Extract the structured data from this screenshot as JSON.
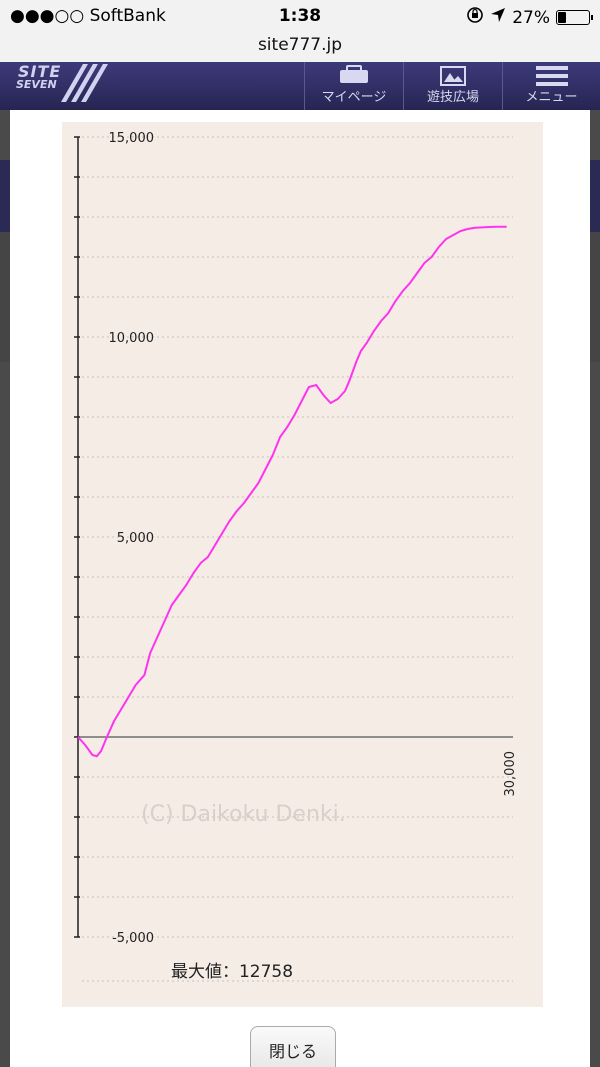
{
  "status_bar": {
    "carrier": "●●●○○ SoftBank",
    "time": "1:38",
    "battery": "27%",
    "battery_level": 0.27
  },
  "browser": {
    "url": "site777.jp"
  },
  "site_header": {
    "logo": {
      "line1": "SITE",
      "line2": "SEVEN"
    },
    "nav": [
      {
        "label": "マイページ",
        "icon": "mypage-icon"
      },
      {
        "label": "遊技広場",
        "icon": "plaza-icon"
      },
      {
        "label": "メニュー",
        "icon": "menu-icon"
      }
    ],
    "colors": {
      "header": "#2e2c63",
      "accent": "#5b3c9a"
    }
  },
  "chart_data": {
    "type": "line",
    "ylim": [
      -5000,
      15000
    ],
    "xlim": [
      0,
      30000
    ],
    "yticks": [
      {
        "value": 15000,
        "label": "15,000"
      },
      {
        "value": 10000,
        "label": "10,000"
      },
      {
        "value": 5000,
        "label": "5,000"
      },
      {
        "value": -5000,
        "label": "-5,000"
      }
    ],
    "xticks": [
      {
        "value": 30000,
        "label": "30,000"
      }
    ],
    "minor_step": 1000,
    "grid": true,
    "line_color": "#ff33ee",
    "watermark": "(C) Daikoku Denki.",
    "series": [
      {
        "x": [
          0,
          500,
          1000,
          1300,
          1600,
          2000,
          2500,
          3000,
          3500,
          4000,
          4600,
          5000,
          5500,
          6000,
          6500,
          7000,
          7500,
          8000,
          8500,
          9000,
          9500,
          10000,
          10500,
          11000,
          11500,
          12000,
          12500,
          13000,
          13500,
          14000,
          14500,
          15000,
          15500,
          16000,
          16500,
          17000,
          17500,
          18000,
          18500,
          18800,
          19300,
          19600,
          20000,
          20500,
          21000,
          21500,
          22000,
          22500,
          23000,
          23500,
          24000,
          24500,
          25000,
          25500,
          26000,
          26500,
          27000,
          27500,
          28000,
          28500,
          29000,
          29700
        ],
        "y": [
          0,
          -200,
          -450,
          -480,
          -350,
          0,
          400,
          700,
          1000,
          1300,
          1550,
          2100,
          2500,
          2900,
          3300,
          3550,
          3800,
          4100,
          4350,
          4500,
          4800,
          5100,
          5400,
          5650,
          5850,
          6100,
          6350,
          6700,
          7050,
          7500,
          7750,
          8050,
          8400,
          8750,
          8800,
          8550,
          8350,
          8450,
          8650,
          8900,
          9400,
          9650,
          9850,
          10150,
          10400,
          10600,
          10900,
          11150,
          11350,
          11600,
          11850,
          12000,
          12250,
          12450,
          12550,
          12650,
          12700,
          12730,
          12740,
          12750,
          12756,
          12758
        ]
      }
    ],
    "max_label": "最大値：12758"
  },
  "modal": {
    "close_label": "閉じる"
  }
}
